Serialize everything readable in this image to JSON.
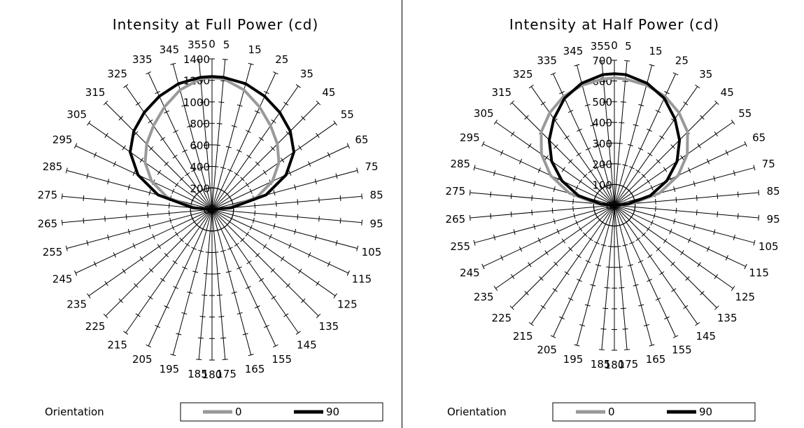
{
  "chart_data": [
    {
      "type": "radar",
      "title": "Intensity at Full Power  (cd)",
      "angles": [
        0,
        5,
        15,
        25,
        35,
        45,
        55,
        65,
        75,
        85,
        95,
        105,
        115,
        125,
        135,
        145,
        155,
        165,
        175,
        180,
        185,
        195,
        205,
        215,
        225,
        235,
        245,
        255,
        265,
        275,
        285,
        295,
        305,
        315,
        325,
        335,
        345,
        355
      ],
      "r_ticks": [
        0,
        200,
        400,
        600,
        800,
        1000,
        1200,
        1400
      ],
      "rlim": [
        0,
        1400
      ],
      "legend_title": "Orientation",
      "series": [
        {
          "name": "0",
          "color": "#999999",
          "points": [
            [
              0,
              1225
            ],
            [
              5,
              1220
            ],
            [
              15,
              1150
            ],
            [
              25,
              1050
            ],
            [
              35,
              950
            ],
            [
              45,
              860
            ],
            [
              55,
              760
            ],
            [
              65,
              620
            ],
            [
              75,
              430
            ],
            [
              85,
              150
            ],
            [
              95,
              0
            ],
            [
              180,
              0
            ],
            [
              265,
              0
            ],
            [
              275,
              150
            ],
            [
              285,
              430
            ],
            [
              295,
              620
            ],
            [
              305,
              760
            ],
            [
              315,
              860
            ],
            [
              325,
              950
            ],
            [
              335,
              1050
            ],
            [
              345,
              1150
            ],
            [
              355,
              1220
            ]
          ]
        },
        {
          "name": "90",
          "color": "#000000",
          "points": [
            [
              0,
              1235
            ],
            [
              5,
              1233
            ],
            [
              15,
              1210
            ],
            [
              25,
              1160
            ],
            [
              35,
              1100
            ],
            [
              45,
              1030
            ],
            [
              55,
              930
            ],
            [
              65,
              760
            ],
            [
              75,
              520
            ],
            [
              85,
              180
            ],
            [
              95,
              0
            ],
            [
              180,
              0
            ],
            [
              265,
              0
            ],
            [
              275,
              180
            ],
            [
              285,
              520
            ],
            [
              295,
              760
            ],
            [
              305,
              930
            ],
            [
              315,
              1030
            ],
            [
              325,
              1100
            ],
            [
              335,
              1160
            ],
            [
              345,
              1210
            ],
            [
              355,
              1233
            ]
          ]
        }
      ]
    },
    {
      "type": "radar",
      "title": "Intensity at Half Power (cd)",
      "angles": [
        0,
        5,
        15,
        25,
        35,
        45,
        55,
        65,
        75,
        85,
        95,
        105,
        115,
        125,
        135,
        145,
        155,
        165,
        175,
        180,
        185,
        195,
        205,
        215,
        225,
        235,
        245,
        255,
        265,
        275,
        285,
        295,
        305,
        315,
        325,
        335,
        345,
        355
      ],
      "r_ticks": [
        0,
        100,
        200,
        300,
        400,
        500,
        600,
        700
      ],
      "rlim": [
        0,
        700
      ],
      "legend_title": "Orientation",
      "series": [
        {
          "name": "0",
          "color": "#999999",
          "points": [
            [
              0,
              615
            ],
            [
              5,
              612
            ],
            [
              15,
              600
            ],
            [
              25,
              580
            ],
            [
              35,
              545
            ],
            [
              45,
              500
            ],
            [
              55,
              430
            ],
            [
              65,
              340
            ],
            [
              75,
              225
            ],
            [
              85,
              85
            ],
            [
              95,
              0
            ],
            [
              180,
              0
            ],
            [
              265,
              0
            ],
            [
              275,
              85
            ],
            [
              285,
              225
            ],
            [
              295,
              340
            ],
            [
              305,
              430
            ],
            [
              315,
              500
            ],
            [
              325,
              545
            ],
            [
              335,
              580
            ],
            [
              345,
              600
            ],
            [
              355,
              612
            ]
          ]
        },
        {
          "name": "90",
          "color": "#000000",
          "points": [
            [
              0,
              635
            ],
            [
              5,
              633
            ],
            [
              15,
              610
            ],
            [
              25,
              570
            ],
            [
              35,
              510
            ],
            [
              45,
              445
            ],
            [
              55,
              370
            ],
            [
              65,
              280
            ],
            [
              75,
              180
            ],
            [
              85,
              65
            ],
            [
              95,
              0
            ],
            [
              180,
              0
            ],
            [
              265,
              0
            ],
            [
              275,
              65
            ],
            [
              285,
              180
            ],
            [
              295,
              280
            ],
            [
              305,
              370
            ],
            [
              315,
              445
            ],
            [
              325,
              510
            ],
            [
              335,
              570
            ],
            [
              345,
              610
            ],
            [
              355,
              633
            ]
          ]
        }
      ]
    }
  ],
  "charts": [
    {
      "title": "Intensity at Full Power  (cd)",
      "legend_title": "Orientation",
      "legend": [
        "0",
        "90"
      ]
    },
    {
      "title": "Intensity at Half Power (cd)",
      "legend_title": "Orientation",
      "legend": [
        "0",
        "90"
      ]
    }
  ]
}
